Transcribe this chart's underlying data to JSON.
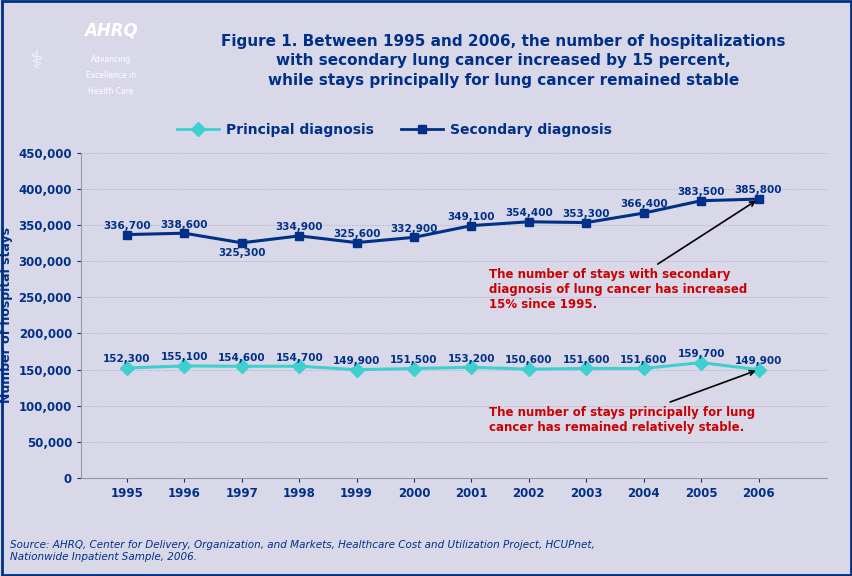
{
  "years": [
    1995,
    1996,
    1997,
    1998,
    1999,
    2000,
    2001,
    2002,
    2003,
    2004,
    2005,
    2006
  ],
  "principal": [
    152300,
    155100,
    154600,
    154700,
    149900,
    151500,
    153200,
    150600,
    151600,
    151600,
    159700,
    149900
  ],
  "secondary": [
    336700,
    338600,
    325300,
    334900,
    325600,
    332900,
    349100,
    354400,
    353300,
    366400,
    383500,
    385800
  ],
  "principal_labels": [
    "152,300",
    "155,100",
    "154,600",
    "154,700",
    "149,900",
    "151,500",
    "153,200",
    "150,600",
    "151,600",
    "151,600",
    "159,700",
    "149,900"
  ],
  "secondary_labels": [
    "336,700",
    "338,600",
    "325,300",
    "334,900",
    "325,600",
    "332,900",
    "349,100",
    "354,400",
    "353,300",
    "366,400",
    "383,500",
    "385,800"
  ],
  "principal_color": "#3ECFCF",
  "secondary_color": "#003087",
  "label_color": "#003087",
  "title_color": "#003087",
  "annotation_color": "#CC0000",
  "bg_color": "#D8D8E8",
  "header_bg_color": "#FFFFFF",
  "sep_color": "#003087",
  "title_text": "Figure 1. Between 1995 and 2006, the number of hospitalizations\nwith secondary lung cancer increased by 15 percent,\nwhile stays principally for lung cancer remained stable",
  "ylabel": "Number of hospital stays",
  "ylim": [
    0,
    450000
  ],
  "yticks": [
    0,
    50000,
    100000,
    150000,
    200000,
    250000,
    300000,
    350000,
    400000,
    450000
  ],
  "ytick_labels": [
    "0",
    "50,000",
    "100,000",
    "150,000",
    "200,000",
    "250,000",
    "300,000",
    "350,000",
    "400,000",
    "450,000"
  ],
  "source_text": "Source: AHRQ, Center for Delivery, Organization, and Markets, Healthcare Cost and Utilization Project, HCUPnet,\nNationwide Inpatient Sample, 2006.",
  "annotation1_text": "The number of stays with secondary\ndiagnosis of lung cancer has increased\n15% since 1995.",
  "annotation2_text": "The number of stays principally for lung\ncancer has remained relatively stable.",
  "legend_principal": "Principal diagnosis",
  "legend_secondary": "Secondary diagnosis"
}
